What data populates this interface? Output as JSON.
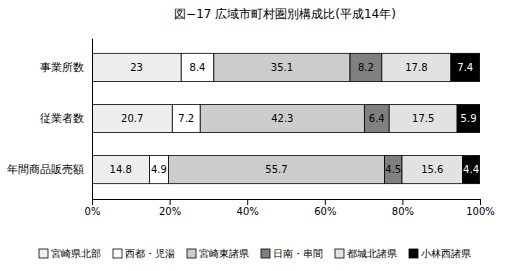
{
  "chart_data": {
    "type": "bar",
    "title": "図−17 広域市町村圏別構成比(平成14年)",
    "orientation": "horizontal",
    "stacked": true,
    "data_labels": true,
    "grid": false,
    "legend": "bottom",
    "categories": [
      "事業所数",
      "従業者数",
      "年間商品販売額"
    ],
    "series": [
      {
        "name": "宮崎県北部",
        "color": "#eeeeee",
        "values": [
          23,
          20.7,
          14.8
        ]
      },
      {
        "name": "西都・児湯",
        "color": "#ffffff",
        "values": [
          8.4,
          7.2,
          4.9
        ]
      },
      {
        "name": "宮崎東諸県",
        "color": "#cccccc",
        "values": [
          35.1,
          42.3,
          55.7
        ]
      },
      {
        "name": "日南・串間",
        "color": "#808080",
        "values": [
          8.2,
          6.4,
          4.5
        ]
      },
      {
        "name": "都城北諸県",
        "color": "#e2e2e2",
        "values": [
          17.8,
          17.5,
          15.6
        ]
      },
      {
        "name": "小林西諸県",
        "color": "#000000",
        "values": [
          7.4,
          5.9,
          4.4
        ]
      }
    ],
    "xlim": [
      0,
      100
    ],
    "xticks": [
      {
        "value": 0,
        "label": "0%"
      },
      {
        "value": 20,
        "label": "20%"
      },
      {
        "value": 40,
        "label": "40%"
      },
      {
        "value": 60,
        "label": "60%"
      },
      {
        "value": 80,
        "label": "80%"
      },
      {
        "value": 100,
        "label": "100%"
      }
    ]
  }
}
